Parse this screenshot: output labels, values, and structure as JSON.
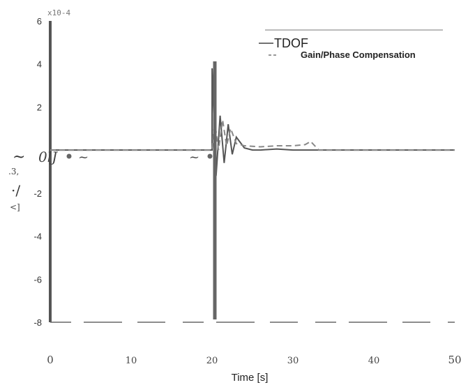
{
  "chart_data": {
    "type": "line",
    "title": "",
    "xlabel": "Time [s]",
    "ylabel": "",
    "y_scale_label": "x10-4",
    "xlim": [
      0,
      50
    ],
    "ylim": [
      -8,
      6
    ],
    "x_ticks": [
      "0",
      "10",
      "20",
      "30",
      "40",
      "50"
    ],
    "y_ticks": [
      "6",
      "4",
      "2",
      "0",
      "-2",
      "-4",
      "-6",
      "-8"
    ],
    "y_tick_values": [
      6,
      4,
      2,
      0,
      -2,
      -4,
      -6,
      -8
    ],
    "x_tick_values": [
      0,
      10,
      20,
      30,
      40,
      50
    ],
    "y_axis_text_fragments": [
      "~",
      "0lJ",
      ".3,",
      "·/",
      "<]"
    ],
    "grid": false,
    "legend_position": "top-right",
    "legend": [
      {
        "label": "TDOF",
        "style": "solid",
        "color": "#555555"
      },
      {
        "label": "Gain/Phase Compensation",
        "style": "dashed",
        "color": "#888888"
      }
    ],
    "series": [
      {
        "name": "TDOF",
        "style": "solid",
        "x": [
          0,
          20.0,
          20.01,
          20.5,
          21.0,
          21.5,
          22.0,
          22.5,
          23.0,
          24.0,
          25.0,
          26.0,
          28.0,
          30.0,
          31.5,
          32.5,
          33.0,
          50.0
        ],
        "y": [
          0,
          0,
          3.8,
          -1.2,
          1.6,
          -0.6,
          1.2,
          -0.2,
          0.6,
          0.1,
          0.0,
          0.0,
          0.05,
          0.0,
          0.0,
          0.0,
          0.0,
          0.0
        ]
      },
      {
        "name": "Gain/Phase Compensation",
        "style": "dashed",
        "x": [
          0,
          20.0,
          20.3,
          20.8,
          21.3,
          21.8,
          22.3,
          23.0,
          24.0,
          26.0,
          28.0,
          30.0,
          31.5,
          32.2,
          32.7,
          33.2,
          50.0
        ],
        "y": [
          0,
          0,
          1.4,
          0.0,
          1.4,
          0.2,
          1.0,
          0.3,
          0.2,
          0.15,
          0.2,
          0.2,
          0.25,
          0.4,
          0.2,
          0.0,
          0.0
        ]
      }
    ]
  }
}
